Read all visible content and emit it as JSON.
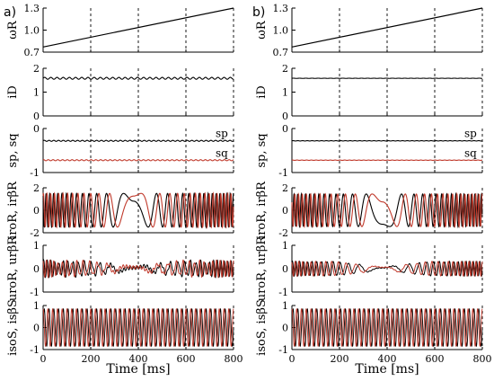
{
  "panel_labels": [
    "a)",
    "b)"
  ],
  "xlabel": "Time [ms]",
  "colors": {
    "series1": "#000000",
    "series2": "#c0392b",
    "grid": "#000000"
  },
  "chart_data": [
    {
      "type": "line",
      "panel": "a)",
      "row": 1,
      "ylabel": "ωR",
      "xlim": [
        0,
        800
      ],
      "ylim": [
        0.7,
        1.3
      ],
      "yticks": [
        "1.3",
        "1.0",
        "0.7"
      ],
      "x": [
        0,
        800
      ],
      "series": [
        {
          "values": [
            0.77,
            1.3
          ]
        }
      ]
    },
    {
      "type": "line",
      "panel": "a)",
      "row": 2,
      "ylabel": "iD",
      "xlim": [
        0,
        800
      ],
      "ylim": [
        0,
        2
      ],
      "yticks": [
        "2",
        "1",
        "0"
      ],
      "series": [
        {
          "mean": 1.58,
          "ripple_amplitude": 0.04
        }
      ]
    },
    {
      "type": "line",
      "panel": "a)",
      "row": 3,
      "ylabel": "sp, sq",
      "xlim": [
        0,
        800
      ],
      "ylim": [
        -1,
        0
      ],
      "yticks": [
        "0",
        "-1"
      ],
      "series": [
        {
          "name": "sp",
          "mean": -0.28
        },
        {
          "name": "sq",
          "mean": -0.72
        }
      ],
      "annotations": [
        "sp",
        "sq"
      ]
    },
    {
      "type": "line",
      "panel": "a)",
      "row": 4,
      "ylabel": "iroR, irβR",
      "xlim": [
        0,
        800
      ],
      "ylim": [
        -2,
        2
      ],
      "yticks": [
        "2",
        "0",
        "-2"
      ],
      "series": [
        {
          "amplitude": 1.5,
          "slip_frequency": "decreasing to zero near 380 ms"
        },
        {
          "amplitude": 1.5,
          "phase": "quadrature"
        }
      ]
    },
    {
      "type": "line",
      "panel": "a)",
      "row": 5,
      "ylabel": "uroR, urβR",
      "xlim": [
        0,
        800
      ],
      "ylim": [
        -1,
        1
      ],
      "yticks": [
        "1",
        "0",
        "-1"
      ],
      "series": [
        {
          "amplitude": 0.3
        },
        {
          "amplitude": 0.3
        }
      ]
    },
    {
      "type": "line",
      "panel": "a)",
      "row": 6,
      "ylabel": "isoS, isβS",
      "xlim": [
        0,
        800
      ],
      "ylim": [
        -1,
        1
      ],
      "yticks": [
        "1",
        "0",
        "-1"
      ],
      "series": [
        {
          "amplitude": 0.85,
          "frequency_hz": 50
        },
        {
          "amplitude": 0.85,
          "frequency_hz": 50
        }
      ]
    },
    {
      "type": "line",
      "panel": "b)",
      "row": 1,
      "ylabel": "ωR",
      "xlim": [
        0,
        800
      ],
      "ylim": [
        0.7,
        1.3
      ],
      "yticks": [
        "1.3",
        "1.0",
        "0.7"
      ],
      "x": [
        0,
        800
      ],
      "series": [
        {
          "values": [
            0.77,
            1.3
          ]
        }
      ]
    },
    {
      "type": "line",
      "panel": "b)",
      "row": 2,
      "ylabel": "iD",
      "xlim": [
        0,
        800
      ],
      "ylim": [
        0,
        2
      ],
      "yticks": [
        "2",
        "1",
        "0"
      ],
      "series": [
        {
          "mean": 1.58,
          "ripple_amplitude": 0.005
        }
      ]
    },
    {
      "type": "line",
      "panel": "b)",
      "row": 3,
      "ylabel": "sp, sq",
      "xlim": [
        0,
        800
      ],
      "ylim": [
        -1,
        0
      ],
      "yticks": [
        "0",
        "-1"
      ],
      "series": [
        {
          "name": "sp",
          "mean": -0.28
        },
        {
          "name": "sq",
          "mean": -0.72
        }
      ],
      "annotations": [
        "sp",
        "sq"
      ]
    },
    {
      "type": "line",
      "panel": "b)",
      "row": 4,
      "ylabel": "iroR, irβR",
      "xlim": [
        0,
        800
      ],
      "ylim": [
        -2,
        2
      ],
      "yticks": [
        "2",
        "0",
        "-2"
      ],
      "series": [
        {
          "amplitude": 1.4
        },
        {
          "amplitude": 1.5
        }
      ]
    },
    {
      "type": "line",
      "panel": "b)",
      "row": 5,
      "ylabel": "uroR, urβR",
      "xlim": [
        0,
        800
      ],
      "ylim": [
        -1,
        1
      ],
      "yticks": [
        "1",
        "0",
        "-1"
      ],
      "series": [
        {
          "amplitude": 0.3
        },
        {
          "amplitude": 0.3
        }
      ]
    },
    {
      "type": "line",
      "panel": "b)",
      "row": 6,
      "ylabel": "isoS, isβS",
      "xlim": [
        0,
        800
      ],
      "ylim": [
        -1,
        1
      ],
      "yticks": [
        "1",
        "0",
        "-1"
      ],
      "series": [
        {
          "amplitude": 0.85,
          "frequency_hz": 50
        },
        {
          "amplitude": 0.85,
          "frequency_hz": 50
        }
      ]
    }
  ],
  "xticks": [
    "0",
    "200",
    "400",
    "600",
    "800"
  ],
  "xtick_values": [
    0,
    200,
    400,
    600,
    800
  ],
  "grid": {
    "vertical_dashed_at": [
      200,
      400,
      600,
      800
    ]
  }
}
